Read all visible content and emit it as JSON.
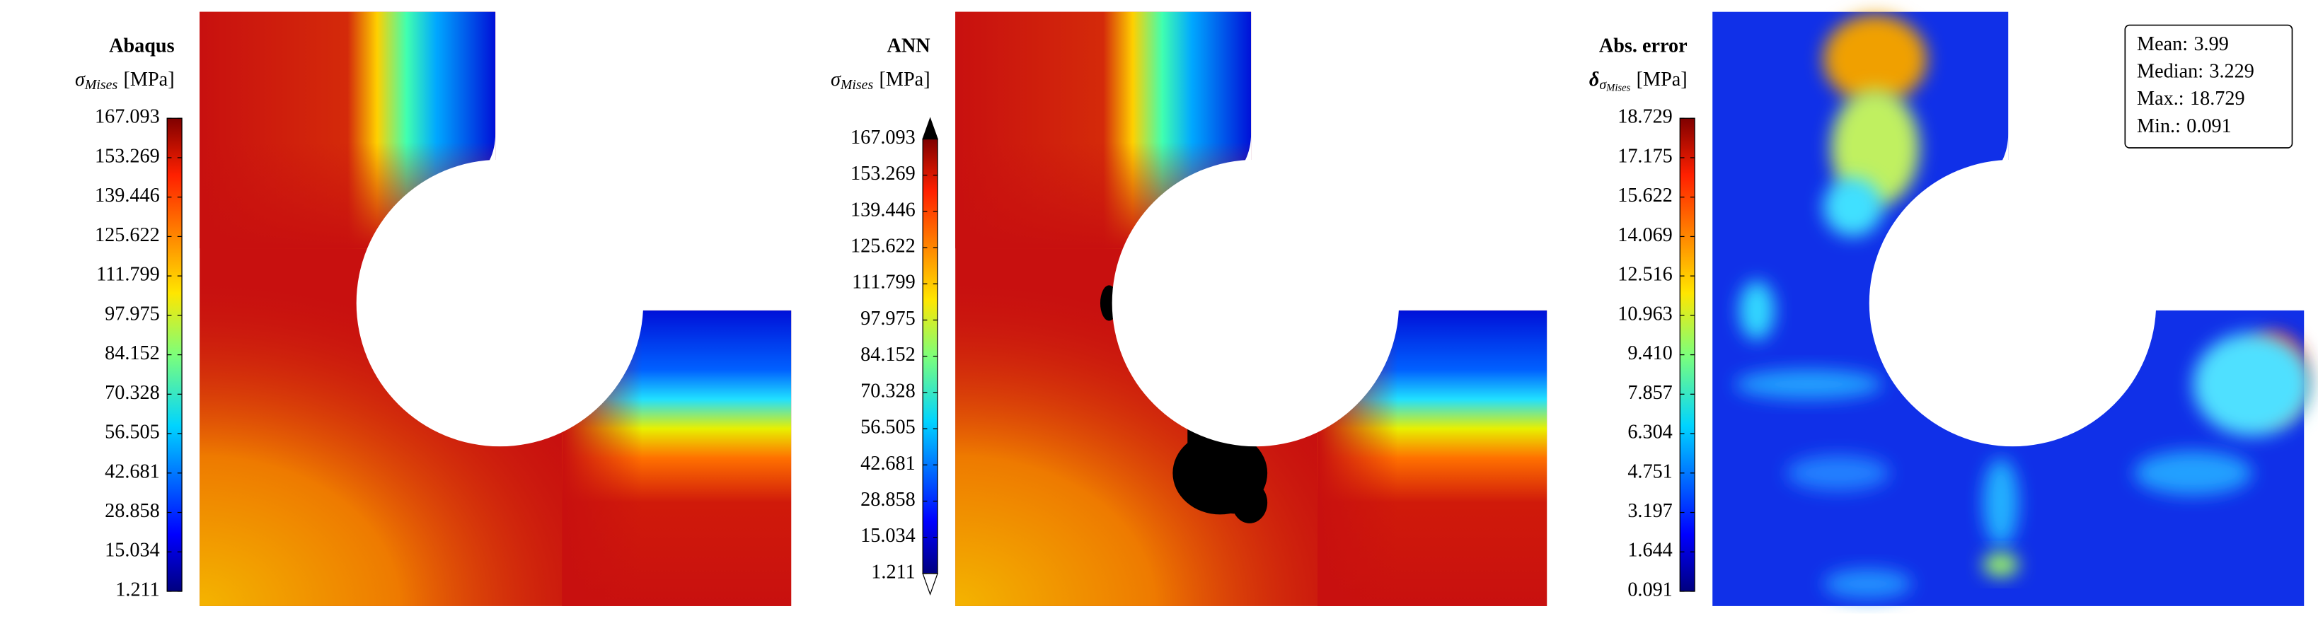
{
  "chart_data": [
    {
      "type": "contour",
      "title": "Abaqus",
      "colorbar_label": {
        "symbol": "σ",
        "sub": "Mises",
        "unit": "[MPa]"
      },
      "colormap": "jet",
      "ylim": [
        1.211,
        167.093
      ],
      "yticks": [
        1.211,
        15.034,
        28.858,
        42.681,
        56.505,
        70.328,
        84.152,
        97.975,
        111.799,
        125.622,
        139.446,
        153.269,
        167.093
      ]
    },
    {
      "type": "contour",
      "title": "ANN",
      "colorbar_label": {
        "symbol": "σ",
        "sub": "Mises",
        "unit": "[MPa]"
      },
      "colormap": "jet",
      "extend": "both",
      "ylim": [
        1.211,
        167.093
      ],
      "yticks": [
        1.211,
        15.034,
        28.858,
        42.681,
        56.505,
        70.328,
        84.152,
        97.975,
        111.799,
        125.622,
        139.446,
        153.269,
        167.093
      ]
    },
    {
      "type": "contour",
      "title": "Abs. error",
      "colorbar_label": {
        "symbol": "δ",
        "sub": "σ",
        "subsub": "Mises",
        "unit": "[MPa]"
      },
      "colormap": "jet",
      "ylim": [
        0.091,
        18.729
      ],
      "yticks": [
        0.091,
        1.644,
        3.197,
        4.751,
        6.304,
        7.857,
        {
          "value": 9.41,
          "label": "9.410"
        },
        10.963,
        12.516,
        14.069,
        15.622,
        17.175,
        18.729
      ],
      "stats": [
        {
          "label": "Mean:",
          "value": 3.99
        },
        {
          "label": "Median:",
          "value": 3.229
        },
        {
          "label": "Max.:",
          "value": 18.729
        },
        {
          "label": "Min.:",
          "value": 0.091
        }
      ]
    }
  ]
}
